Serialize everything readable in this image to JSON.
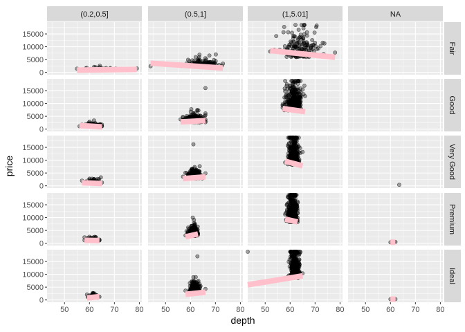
{
  "chart_data": {
    "type": "scatter",
    "layout": "facet_grid",
    "xlabel": "depth",
    "ylabel": "price",
    "col_facets": [
      "(0.2,0.5]",
      "(0.5,1]",
      "(1,5.01]",
      "NA"
    ],
    "row_facets": [
      "Fair",
      "Good",
      "Very Good",
      "Premium",
      "Ideal"
    ],
    "xlim": [
      43,
      81
    ],
    "ylim": [
      -900,
      19600
    ],
    "x_ticks": [
      50,
      60,
      70,
      80
    ],
    "y_ticks": [
      0,
      5000,
      10000,
      15000
    ],
    "y_tick_labels": [
      "0",
      "5000",
      "10000",
      "15000"
    ],
    "point_color": "#000000",
    "point_alpha": 0.35,
    "trend_color": "#FFC0CB",
    "panel_background": "#EBEBEB",
    "strip_background": "#D9D9D9",
    "grid": true,
    "panels": [
      {
        "row": "Fair",
        "col": "(0.2,0.5]",
        "depth_range": [
          55,
          79
        ],
        "depth_center": 64.5,
        "depth_sd": 3.5,
        "price_range": [
          400,
          2600
        ],
        "price_center": 1100,
        "price_sd": 400,
        "n": 45,
        "trend": [
          [
            55,
            900
          ],
          [
            79,
            1150
          ]
        ]
      },
      {
        "row": "Fair",
        "col": "(0.5,1]",
        "depth_range": [
          44,
          73
        ],
        "depth_center": 64.5,
        "depth_sd": 3.5,
        "price_range": [
          500,
          7000
        ],
        "price_center": 2700,
        "price_sd": 1100,
        "n": 130,
        "trend": [
          [
            44,
            3600
          ],
          [
            73,
            1700
          ]
        ]
      },
      {
        "row": "Fair",
        "col": "(1,5.01]",
        "depth_range": [
          52,
          78
        ],
        "depth_center": 64.5,
        "depth_sd": 3.5,
        "price_range": [
          1800,
          18500
        ],
        "price_center": 7000,
        "price_sd": 3500,
        "n": 170,
        "trend": [
          [
            52,
            8500
          ],
          [
            78,
            5900
          ]
        ]
      },
      {
        "row": "Good",
        "col": "(0.2,0.5]",
        "depth_range": [
          56,
          65
        ],
        "depth_center": 61.5,
        "depth_sd": 1.8,
        "price_range": [
          400,
          3400
        ],
        "price_center": 1100,
        "price_sd": 450,
        "n": 110,
        "trend": [
          [
            56,
            1400
          ],
          [
            65,
            900
          ]
        ]
      },
      {
        "row": "Good",
        "col": "(0.5,1]",
        "depth_range": [
          56,
          66
        ],
        "depth_center": 61.5,
        "depth_sd": 1.8,
        "price_range": [
          1300,
          16000
        ],
        "price_center": 3000,
        "price_sd": 1100,
        "n": 260,
        "trend": [
          [
            56,
            2800
          ],
          [
            66,
            3300
          ]
        ]
      },
      {
        "row": "Good",
        "col": "(1,5.01]",
        "depth_range": [
          57,
          66
        ],
        "depth_center": 61.5,
        "depth_sd": 1.7,
        "price_range": [
          2500,
          18800
        ],
        "price_center": 8500,
        "price_sd": 4000,
        "n": 320,
        "trend": [
          [
            57,
            8000
          ],
          [
            66,
            6800
          ]
        ]
      },
      {
        "row": "Very Good",
        "col": "(0.2,0.5]",
        "depth_range": [
          57,
          65
        ],
        "depth_center": 61.5,
        "depth_sd": 1.3,
        "price_range": [
          350,
          3300
        ],
        "price_center": 1000,
        "price_sd": 450,
        "n": 130,
        "trend": [
          [
            57,
            1200
          ],
          [
            65,
            900
          ]
        ]
      },
      {
        "row": "Very Good",
        "col": "(0.5,1]",
        "depth_range": [
          57,
          66
        ],
        "depth_center": 61.5,
        "depth_sd": 1.2,
        "price_range": [
          1400,
          16200
        ],
        "price_center": 3200,
        "price_sd": 1200,
        "n": 300,
        "trend": [
          [
            57,
            2800
          ],
          [
            66,
            3500
          ]
        ]
      },
      {
        "row": "Very Good",
        "col": "(1,5.01]",
        "depth_range": [
          58,
          65
        ],
        "depth_center": 61.5,
        "depth_sd": 1.1,
        "price_range": [
          3000,
          18800
        ],
        "price_center": 9500,
        "price_sd": 4200,
        "n": 340,
        "trend": [
          [
            58,
            9600
          ],
          [
            65,
            7800
          ]
        ]
      },
      {
        "row": "Very Good",
        "col": "NA",
        "depth_range": [
          63.5,
          63.5
        ],
        "depth_center": 63.5,
        "depth_sd": 0,
        "price_range": [
          400,
          400
        ],
        "price_center": 400,
        "price_sd": 0,
        "n": 1,
        "trend": []
      },
      {
        "row": "Premium",
        "col": "(0.2,0.5]",
        "depth_range": [
          58,
          64
        ],
        "depth_center": 61.2,
        "depth_sd": 1.0,
        "price_range": [
          400,
          2500
        ],
        "price_center": 1000,
        "price_sd": 420,
        "n": 110,
        "trend": [
          [
            58,
            1150
          ],
          [
            64,
            1050
          ]
        ]
      },
      {
        "row": "Premium",
        "col": "(0.5,1]",
        "depth_range": [
          58,
          63
        ],
        "depth_center": 61.0,
        "depth_sd": 0.9,
        "price_range": [
          1300,
          10000
        ],
        "price_center": 3200,
        "price_sd": 1300,
        "n": 300,
        "trend": [
          [
            58,
            2500
          ],
          [
            63,
            3600
          ]
        ]
      },
      {
        "row": "Premium",
        "col": "(1,5.01]",
        "depth_range": [
          58,
          63
        ],
        "depth_center": 61.0,
        "depth_sd": 0.9,
        "price_range": [
          3000,
          18800
        ],
        "price_center": 9500,
        "price_sd": 4200,
        "n": 380,
        "trend": [
          [
            58,
            9400
          ],
          [
            63,
            8300
          ]
        ]
      },
      {
        "row": "Premium",
        "col": "NA",
        "depth_range": [
          60,
          62
        ],
        "depth_center": 61,
        "depth_sd": 0.5,
        "price_range": [
          200,
          600
        ],
        "price_center": 400,
        "price_sd": 150,
        "n": 5,
        "trend": [
          [
            60,
            400
          ],
          [
            62,
            400
          ]
        ]
      },
      {
        "row": "Ideal",
        "col": "(0.2,0.5]",
        "depth_range": [
          59,
          64
        ],
        "depth_center": 61.5,
        "depth_sd": 0.8,
        "price_range": [
          350,
          2700
        ],
        "price_center": 1000,
        "price_sd": 450,
        "n": 120,
        "trend": [
          [
            59,
            800
          ],
          [
            64,
            1300
          ]
        ]
      },
      {
        "row": "Ideal",
        "col": "(0.5,1]",
        "depth_range": [
          58,
          66
        ],
        "depth_center": 61.8,
        "depth_sd": 0.9,
        "price_range": [
          1400,
          17000
        ],
        "price_center": 3200,
        "price_sd": 1300,
        "n": 320,
        "trend": [
          [
            58,
            2200
          ],
          [
            66,
            3000
          ]
        ]
      },
      {
        "row": "Ideal",
        "col": "(1,5.01]",
        "depth_range": [
          43,
          65
        ],
        "depth_center": 61.8,
        "depth_sd": 0.9,
        "price_range": [
          4000,
          18800
        ],
        "price_center": 9800,
        "price_sd": 4200,
        "n": 380,
        "trend": [
          [
            43,
            5900
          ],
          [
            65,
            9400
          ]
        ]
      },
      {
        "row": "Ideal",
        "col": "NA",
        "depth_range": [
          60,
          62
        ],
        "depth_center": 61,
        "depth_sd": 0.5,
        "price_range": [
          100,
          500
        ],
        "price_center": 300,
        "price_sd": 100,
        "n": 4,
        "trend": [
          [
            60,
            300
          ],
          [
            62,
            300
          ]
        ]
      }
    ]
  }
}
